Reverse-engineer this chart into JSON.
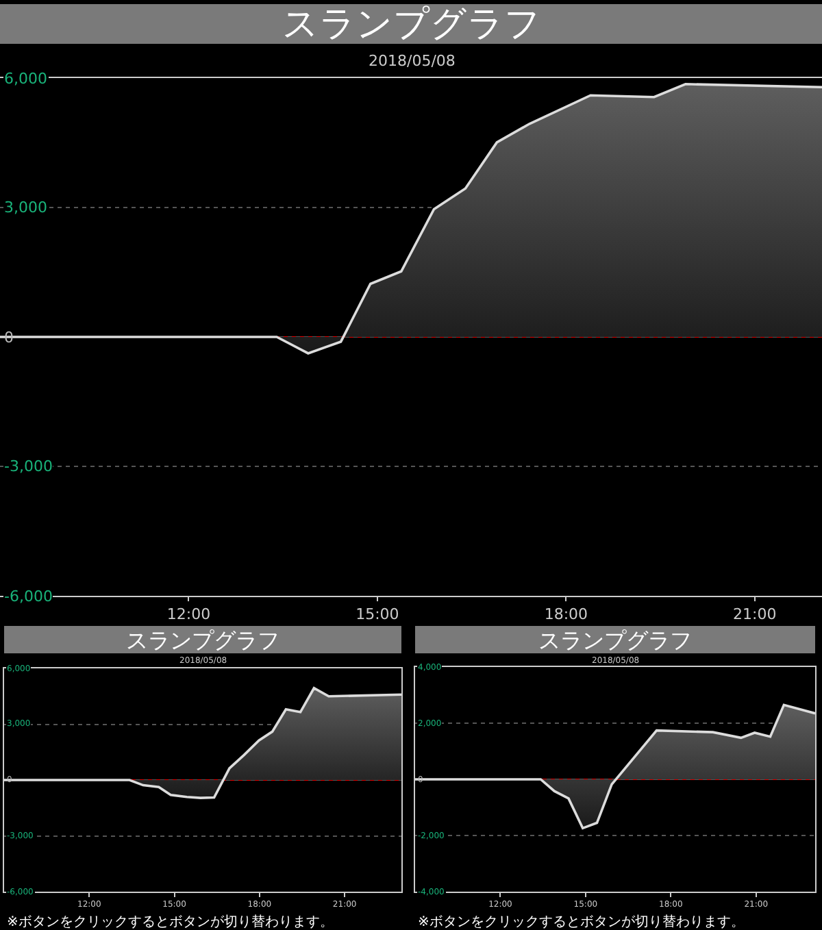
{
  "chart_data": [
    {
      "type": "area",
      "title": "スランプグラフ",
      "subtitle": "2018/05/08",
      "color": "#dcdcdc",
      "x": [
        9.0,
        13.4,
        13.9,
        14.42,
        14.89,
        15.38,
        15.9,
        16.4,
        16.9,
        17.42,
        18.39,
        19.4,
        19.9,
        22.07
      ],
      "values": [
        0,
        0,
        -380,
        -110,
        1230,
        1520,
        2960,
        3440,
        4510,
        4940,
        5600,
        5560,
        5860,
        5790
      ],
      "xlim": [
        9,
        22.07
      ],
      "xticks": [
        {
          "value": 12,
          "label": "12:00"
        },
        {
          "value": 15,
          "label": "15:00"
        },
        {
          "value": 18,
          "label": "18:00"
        },
        {
          "value": 21,
          "label": "21:00"
        }
      ],
      "ylim": [
        -6000,
        6000
      ],
      "yticks": [
        {
          "value": -6000,
          "label": "-6,000"
        },
        {
          "value": -3000,
          "label": "-3,000"
        },
        0,
        {
          "value": 3000,
          "label": "3,000"
        },
        {
          "value": 6000,
          "label": "6,000"
        }
      ],
      "ref_lines": [
        {
          "axis": "y",
          "value": 0,
          "color": "#e00000"
        }
      ],
      "grid": "y"
    },
    {
      "type": "area",
      "title": "スランプグラフ",
      "subtitle": "2018/05/08",
      "color": "#dcdcdc",
      "x": [
        9.0,
        13.42,
        13.9,
        14.45,
        14.87,
        15.44,
        15.92,
        16.4,
        16.94,
        17.45,
        17.98,
        18.45,
        18.93,
        19.44,
        19.92,
        20.44,
        23.0
      ],
      "values": [
        0,
        0,
        -280,
        -380,
        -800,
        -910,
        -960,
        -940,
        630,
        1340,
        2130,
        2600,
        3800,
        3650,
        4940,
        4500,
        4590
      ],
      "xlim": [
        9,
        23
      ],
      "xticks": [
        {
          "value": 12,
          "label": "12:00"
        },
        {
          "value": 15,
          "label": "15:00"
        },
        {
          "value": 18,
          "label": "18:00"
        },
        {
          "value": 21,
          "label": "21:00"
        }
      ],
      "ylim": [
        -6000,
        6000
      ],
      "yticks": [
        {
          "value": -6000,
          "label": "-6,000"
        },
        {
          "value": -3000,
          "label": "-3,000"
        },
        0,
        {
          "value": 3000,
          "label": "3,000"
        },
        {
          "value": 6000,
          "label": "6,000"
        }
      ],
      "ref_lines": [
        {
          "axis": "y",
          "value": 0,
          "color": "#e00000"
        }
      ],
      "grid": "y",
      "annotations": [
        "※ボタンをクリックするとボタンが切り替わります。"
      ]
    },
    {
      "type": "area",
      "title": "スランプグラフ",
      "subtitle": "2018/05/08",
      "color": "#dcdcdc",
      "x": [
        9.0,
        13.42,
        13.9,
        14.4,
        14.9,
        15.4,
        15.92,
        17.5,
        19.48,
        20.47,
        20.95,
        21.5,
        21.98,
        23.08
      ],
      "values": [
        0,
        0,
        -420,
        -680,
        -1740,
        -1550,
        -180,
        1740,
        1680,
        1480,
        1660,
        1520,
        2650,
        2350
      ],
      "xlim": [
        9,
        23.08
      ],
      "xticks": [
        {
          "value": 12,
          "label": "12:00"
        },
        {
          "value": 15,
          "label": "15:00"
        },
        {
          "value": 18,
          "label": "18:00"
        },
        {
          "value": 21,
          "label": "21:00"
        }
      ],
      "ylim": [
        -4000,
        4000
      ],
      "yticks": [
        {
          "value": -4000,
          "label": "-4,000"
        },
        {
          "value": -2000,
          "label": "-2,000"
        },
        0,
        {
          "value": 2000,
          "label": "2,000"
        },
        {
          "value": 4000,
          "label": "4,000"
        }
      ],
      "ref_lines": [
        {
          "axis": "y",
          "value": 0,
          "color": "#e00000"
        }
      ],
      "grid": "y",
      "annotations": [
        "※ボタンをクリックするとボタンが切り替わります。"
      ]
    }
  ]
}
